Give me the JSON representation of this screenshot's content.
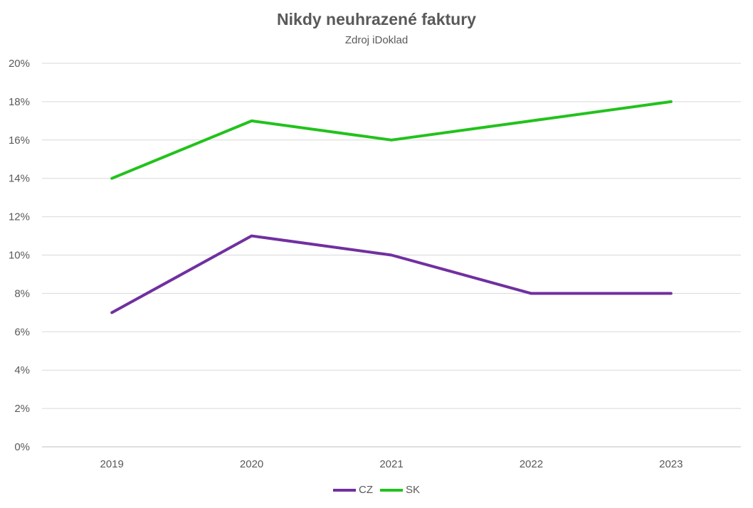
{
  "chart_data": {
    "type": "line",
    "title": "Nikdy neuhrazené faktury",
    "subtitle": "Zdroj iDoklad",
    "categories": [
      "2019",
      "2020",
      "2021",
      "2022",
      "2023"
    ],
    "series": [
      {
        "name": "CZ",
        "values": [
          7,
          11,
          10,
          8,
          8
        ],
        "color": "#7030a0"
      },
      {
        "name": "SK",
        "values": [
          14,
          17,
          16,
          17,
          18
        ],
        "color": "#22c21c"
      }
    ],
    "ylim": [
      0,
      20
    ],
    "yticks": [
      "0%",
      "2%",
      "4%",
      "6%",
      "8%",
      "10%",
      "12%",
      "14%",
      "16%",
      "18%",
      "20%"
    ],
    "y_unit": "%",
    "grid": true,
    "legend_position": "bottom"
  }
}
